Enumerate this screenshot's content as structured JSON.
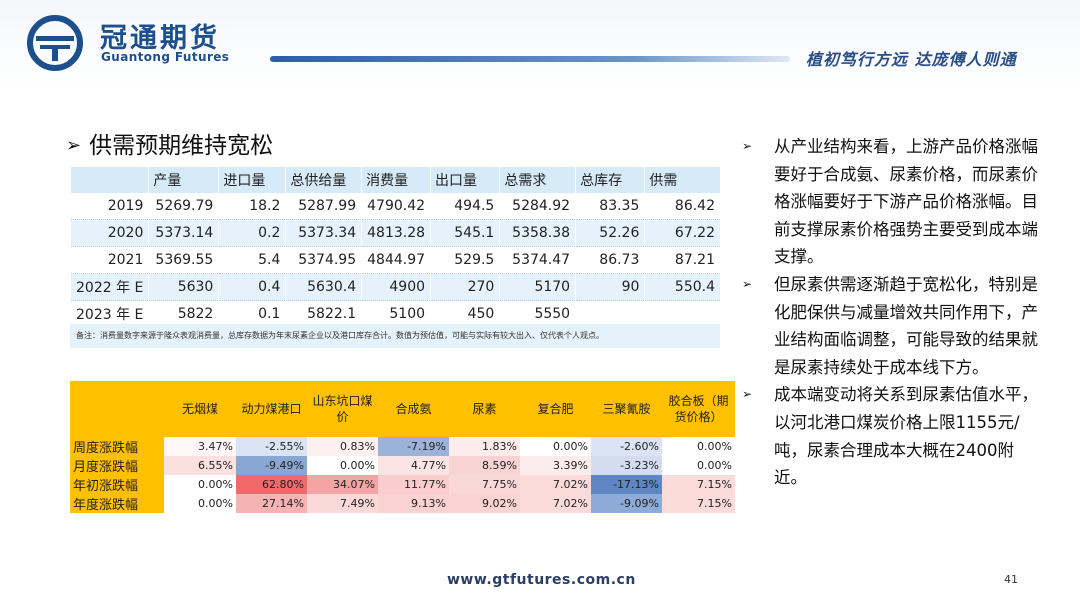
{
  "header": {
    "brand_cn": "冠通期货",
    "brand_en": "Guantong Futures",
    "slogan": "植初笃行方远 达庞傅人则通"
  },
  "section": {
    "bullet": "➢",
    "title": "供需预期维持宽松"
  },
  "supply_table": {
    "headers": [
      "",
      "产量",
      "进口量",
      "总供给量",
      "消费量",
      "出口量",
      "总需求",
      "总库存",
      "供需"
    ],
    "rows": [
      [
        "2019",
        "5269.79",
        "18.2",
        "5287.99",
        "4790.42",
        "494.5",
        "5284.92",
        "83.35",
        "86.42"
      ],
      [
        "2020",
        "5373.14",
        "0.2",
        "5373.34",
        "4813.28",
        "545.1",
        "5358.38",
        "52.26",
        "67.22"
      ],
      [
        "2021",
        "5369.55",
        "5.4",
        "5374.95",
        "4844.97",
        "529.5",
        "5374.47",
        "86.73",
        "87.21"
      ],
      [
        "2022 年 E",
        "5630",
        "0.4",
        "5630.4",
        "4900",
        "270",
        "5170",
        "90",
        "550.4"
      ],
      [
        "2023 年 E",
        "5822",
        "0.1",
        "5822.1",
        "5100",
        "450",
        "5550",
        "",
        ""
      ]
    ],
    "note": "备注：消费量数字来源于隆众表观消费量，总库存数据为年末尿素企业以及港口库存合计。数值为预估值，可能与实际有较大出入、仅代表个人观点。"
  },
  "change_table": {
    "headers": [
      "",
      "无烟煤",
      "动力煤港口",
      "山东坑口煤价",
      "合成氨",
      "尿素",
      "复合肥",
      "三聚氰胺",
      "胶合板（期货价格）"
    ],
    "rows": [
      {
        "label": "周度涨跌幅",
        "values": [
          "3.47%",
          "-2.55%",
          "0.83%",
          "-7.19%",
          "1.83%",
          "0.00%",
          "-2.60%",
          "0.00%"
        ],
        "colors": [
          "#fff7f7",
          "#dbe4f2",
          "#fdf0f0",
          "#9cb2d8",
          "#fcecec",
          "#ffffff",
          "#dbe4f2",
          "#ffffff"
        ]
      },
      {
        "label": "月度涨跌幅",
        "values": [
          "6.55%",
          "-9.49%",
          "0.00%",
          "4.77%",
          "8.59%",
          "3.39%",
          "-3.23%",
          "0.00%"
        ],
        "colors": [
          "#fbe0e0",
          "#8aa7d4",
          "#ffffff",
          "#fbe4e4",
          "#f8d3d3",
          "#fcecec",
          "#d4ddef",
          "#ffffff"
        ]
      },
      {
        "label": "年初涨跌幅",
        "values": [
          "0.00%",
          "62.80%",
          "34.07%",
          "11.77%",
          "7.75%",
          "7.02%",
          "-17.13%",
          "7.15%"
        ],
        "colors": [
          "#ffffff",
          "#f06a6a",
          "#f5a4a4",
          "#f9cdcd",
          "#fbd8d8",
          "#fbdada",
          "#5f86c4",
          "#fbdada"
        ]
      },
      {
        "label": "年度涨跌幅",
        "values": [
          "0.00%",
          "27.14%",
          "7.49%",
          "9.13%",
          "9.02%",
          "7.02%",
          "-9.09%",
          "7.15%"
        ],
        "colors": [
          "#ffffff",
          "#f6b3b3",
          "#fbd9d9",
          "#fad2d2",
          "#fad3d3",
          "#fbdada",
          "#8eaad6",
          "#fbdada"
        ]
      }
    ]
  },
  "right_text": {
    "marker": "➢",
    "bullets": [
      "从产业结构来看，上游产品价格涨幅要好于合成氨、尿素价格，而尿素价格涨幅要好于下游产品价格涨幅。目前支撑尿素价格强势主要受到成本端支撑。",
      "但尿素供需逐渐趋于宽松化，特别是化肥保供与减量增效共同作用下，产业结构面临调整，可能导致的结果就是尿素持续处于成本线下方。",
      "成本端变动将关系到尿素估值水平，以河北港口煤炭价格上限1155元/吨，尿素合理成本大概在2400附近。"
    ]
  },
  "footer": {
    "url": "www.gtfutures.com.cn",
    "page": "41"
  },
  "colors": {
    "brand_blue": "#1d4f8c",
    "table_header_blue": "#d6eaf7",
    "table_header_yellow": "#ffc000"
  }
}
